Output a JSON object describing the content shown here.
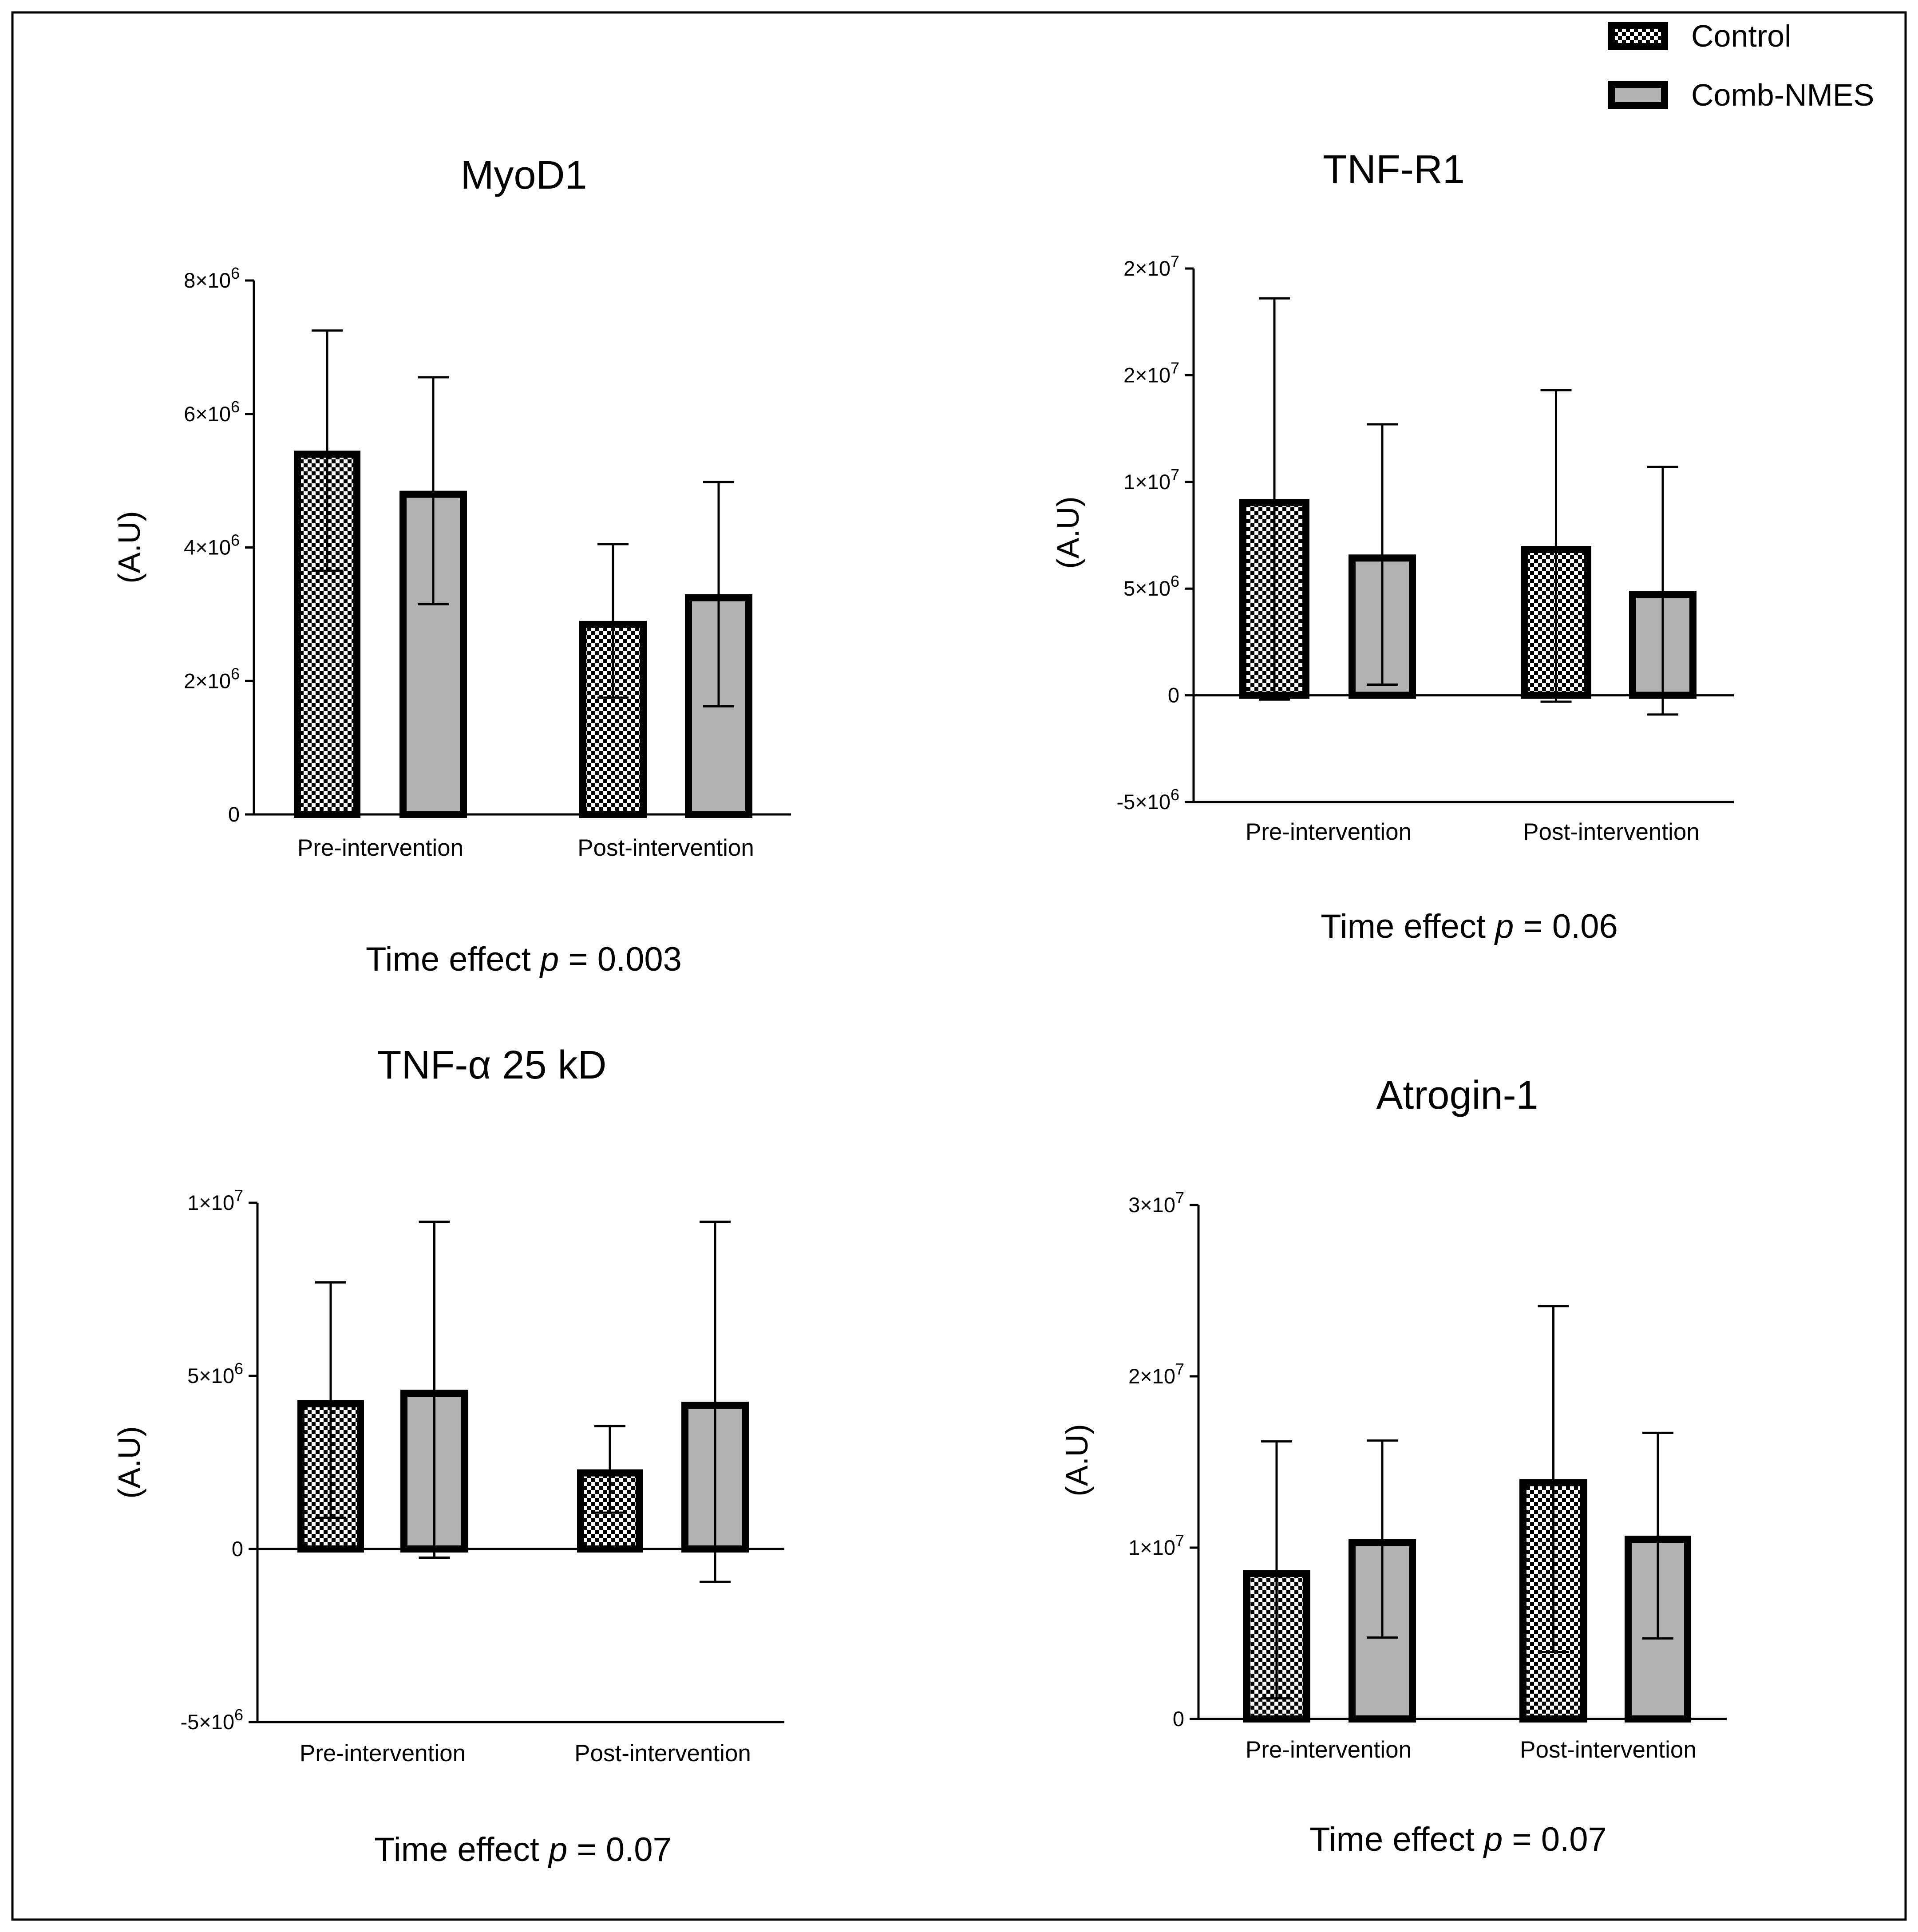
{
  "legend": {
    "control_label": "Control",
    "nmes_label": "Comb-NMES"
  },
  "chart_data": [
    {
      "id": "myod1",
      "type": "bar",
      "title": "MyoD1",
      "ylabel": "(A.U)",
      "xlabel": "",
      "categories": [
        "Pre-intervention",
        "Post-intervention"
      ],
      "series": [
        {
          "name": "Control",
          "values": [
            5450000,
            2900000
          ],
          "err": [
            1800000,
            1150000
          ]
        },
        {
          "name": "Comb-NMES",
          "values": [
            4850000,
            3300000
          ],
          "err": [
            1700000,
            1680000
          ]
        }
      ],
      "ylim": [
        0,
        8000000
      ],
      "ticks": [
        0,
        2000000,
        4000000,
        6000000,
        8000000
      ],
      "tick_labels": [
        "0",
        "2×10⁶",
        "4×10⁶",
        "6×10⁶",
        "8×10⁶"
      ],
      "note": {
        "prefix": "Time effect ",
        "p": "p",
        "suffix": " = 0.003"
      }
    },
    {
      "id": "tnfr1",
      "type": "bar",
      "title": "TNF-R1",
      "ylabel": "(A.U)",
      "xlabel": "",
      "categories": [
        "Pre-intervention",
        "Post-intervention"
      ],
      "series": [
        {
          "name": "Control",
          "values": [
            9200000,
            7000000
          ],
          "err": [
            9400000,
            7300000
          ]
        },
        {
          "name": "Comb-NMES",
          "values": [
            6600000,
            4900000
          ],
          "err": [
            6100000,
            5800000
          ]
        }
      ],
      "ylim": [
        -5000000,
        20000000
      ],
      "ticks": [
        -5000000,
        0,
        5000000,
        10000000,
        15000000,
        20000000
      ],
      "tick_labels": [
        "-5×10⁶",
        "0",
        "5×10⁶",
        "1×10⁷",
        "2×10⁷",
        "2×10⁷"
      ],
      "note": {
        "prefix": "Time effect ",
        "p": "p",
        "suffix": " = 0.06"
      }
    },
    {
      "id": "tnfa",
      "type": "bar",
      "title": "TNF-α 25 kD",
      "ylabel": "(A.U)",
      "xlabel": "",
      "categories": [
        "Pre-intervention",
        "Post-intervention"
      ],
      "series": [
        {
          "name": "Control",
          "values": [
            4300000,
            2300000
          ],
          "err": [
            3400000,
            1250000
          ]
        },
        {
          "name": "Comb-NMES",
          "values": [
            4600000,
            4250000
          ],
          "err": [
            4850000,
            5200000
          ]
        }
      ],
      "ylim": [
        -5000000,
        10000000
      ],
      "ticks": [
        -5000000,
        0,
        5000000,
        10000000
      ],
      "tick_labels": [
        "-5×10⁶",
        "0",
        "5×10⁶",
        "1×10⁷"
      ],
      "note": {
        "prefix": "Time effect ",
        "p": "p",
        "suffix": " = 0.07"
      }
    },
    {
      "id": "atrogin1",
      "type": "bar",
      "title": "Atrogin-1",
      "ylabel": "(A.U)",
      "xlabel": "",
      "categories": [
        "Pre-intervention",
        "Post-intervention"
      ],
      "series": [
        {
          "name": "Control",
          "values": [
            8700000,
            14000000
          ],
          "err": [
            7500000,
            10100000
          ]
        },
        {
          "name": "Comb-NMES",
          "values": [
            10500000,
            10700000
          ],
          "err": [
            5750000,
            6000000
          ]
        }
      ],
      "ylim": [
        0,
        30000000
      ],
      "ticks": [
        0,
        10000000,
        20000000,
        30000000
      ],
      "tick_labels": [
        "0",
        "1×10⁷",
        "2×10⁷",
        "3×10⁷"
      ],
      "note": {
        "prefix": "Time  effect ",
        "p": "p",
        "suffix": " = 0.07"
      }
    }
  ]
}
